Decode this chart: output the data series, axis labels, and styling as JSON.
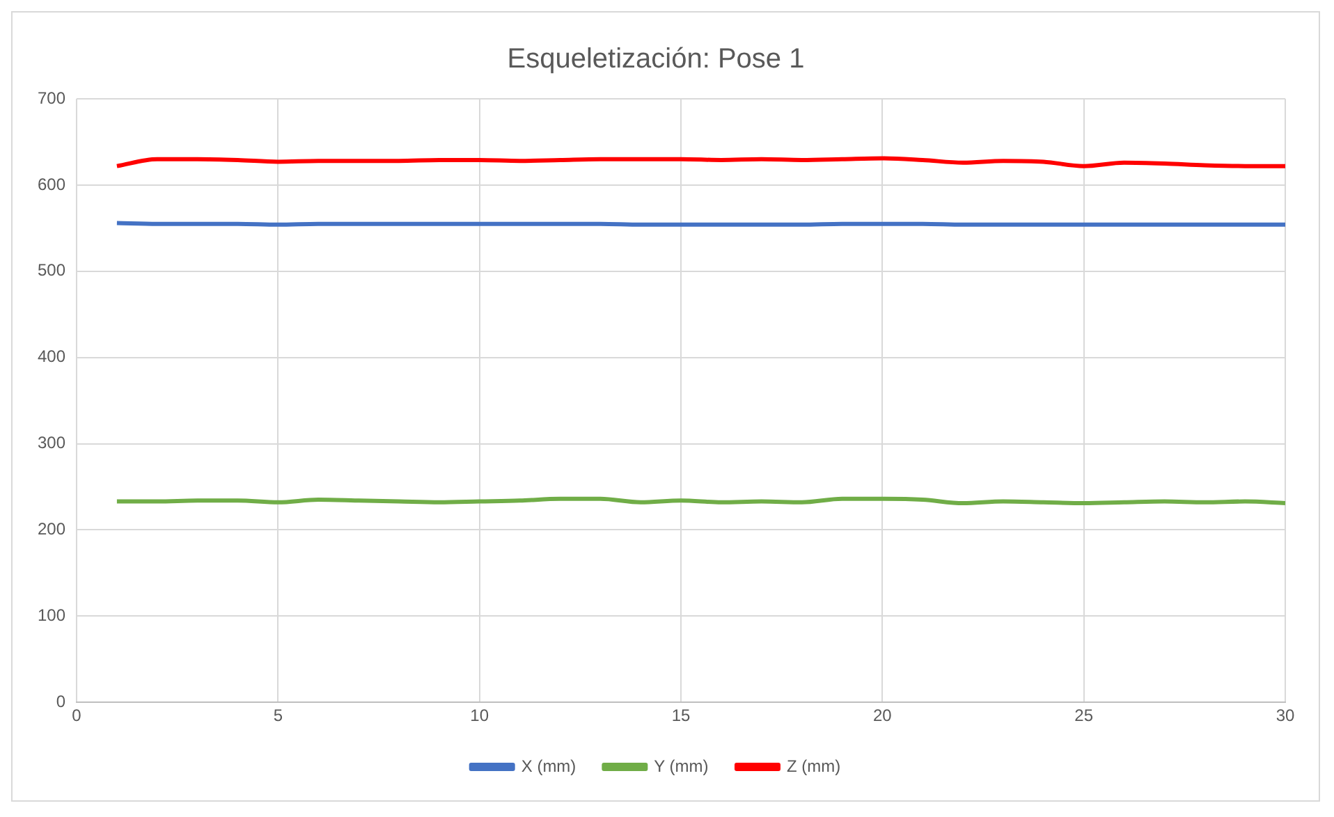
{
  "chart_data": {
    "type": "line",
    "title": "Esqueletización: Pose 1",
    "x": [
      1,
      2,
      3,
      4,
      5,
      6,
      7,
      8,
      9,
      10,
      11,
      12,
      13,
      14,
      15,
      16,
      17,
      18,
      19,
      20,
      21,
      22,
      23,
      24,
      25,
      26,
      27,
      28,
      29,
      30
    ],
    "series": [
      {
        "name": "X (mm)",
        "color": "#4472c4",
        "values": [
          556,
          555,
          555,
          555,
          554,
          555,
          555,
          555,
          555,
          555,
          555,
          555,
          555,
          554,
          554,
          554,
          554,
          554,
          555,
          555,
          555,
          554,
          554,
          554,
          554,
          554,
          554,
          554,
          554,
          554
        ]
      },
      {
        "name": "Y (mm)",
        "color": "#70ad47",
        "values": [
          233,
          233,
          234,
          234,
          232,
          235,
          234,
          233,
          232,
          233,
          234,
          236,
          236,
          232,
          234,
          232,
          233,
          232,
          236,
          236,
          235,
          231,
          233,
          232,
          231,
          232,
          233,
          232,
          233,
          231
        ]
      },
      {
        "name": "Z (mm)",
        "color": "#ff0000",
        "values": [
          622,
          630,
          630,
          629,
          627,
          628,
          628,
          628,
          629,
          629,
          628,
          629,
          630,
          630,
          630,
          629,
          630,
          629,
          630,
          631,
          629,
          626,
          628,
          627,
          622,
          626,
          625,
          623,
          622,
          622
        ]
      }
    ],
    "xlim": [
      0,
      30
    ],
    "xticks": [
      0,
      5,
      10,
      15,
      20,
      25,
      30
    ],
    "ylim": [
      0,
      700
    ],
    "yticks": [
      0,
      100,
      200,
      300,
      400,
      500,
      600,
      700
    ],
    "grid": true,
    "legend": "bottom",
    "marker": "none",
    "line_style": "solid"
  }
}
